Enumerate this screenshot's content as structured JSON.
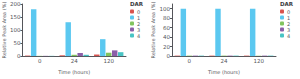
{
  "chart_data": [
    {
      "type": "bar",
      "x_label": "Time (hours)",
      "y_label": "Relative Peak Area (%)",
      "legend_title": "DAR",
      "categories": [
        "0",
        "24",
        "120"
      ],
      "series": [
        {
          "name": "0",
          "color": "#d9534f",
          "values": [
            2,
            3,
            6
          ]
        },
        {
          "name": "1",
          "color": "#5bc8f0",
          "values": [
            180,
            130,
            65
          ]
        },
        {
          "name": "2",
          "color": "#82c45e",
          "values": [
            1,
            5,
            13
          ]
        },
        {
          "name": "3",
          "color": "#8b5fa8",
          "values": [
            1,
            12,
            22
          ]
        },
        {
          "name": "4",
          "color": "#48c4c4",
          "values": [
            1,
            5,
            15
          ]
        }
      ],
      "ylim": [
        0,
        200
      ],
      "yticks": [
        0,
        50,
        100,
        150,
        200
      ],
      "grid": false,
      "legend": "upper right"
    },
    {
      "type": "bar",
      "x_label": "Time (hours)",
      "y_label": "Relative Peak Area (%)",
      "legend_title": "DAR",
      "categories": [
        "0",
        "24",
        "120"
      ],
      "series": [
        {
          "name": "0",
          "color": "#d9534f",
          "values": [
            1,
            1,
            1
          ]
        },
        {
          "name": "1",
          "color": "#5bc8f0",
          "values": [
            100,
            100,
            100
          ]
        },
        {
          "name": "2",
          "color": "#82c45e",
          "values": [
            1,
            1,
            1
          ]
        },
        {
          "name": "3",
          "color": "#8b5fa8",
          "values": [
            1,
            1,
            1
          ]
        },
        {
          "name": "4",
          "color": "#48c4c4",
          "values": [
            1,
            1,
            1
          ]
        }
      ],
      "ylim": [
        0,
        110
      ],
      "yticks": [
        0,
        20,
        40,
        60,
        80,
        100
      ],
      "grid": false,
      "legend": "upper right"
    }
  ]
}
